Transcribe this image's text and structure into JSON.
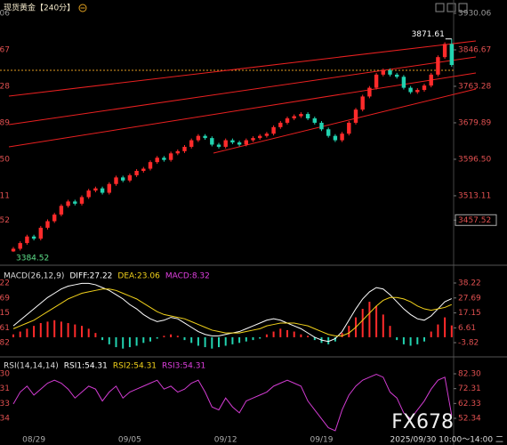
{
  "header": {
    "title": "现货黄金【240分】"
  },
  "watermark": "FX678",
  "chart_data": [
    {
      "type": "candlestick",
      "up_color": "#ff2b2b",
      "down_color": "#22d3b0",
      "ylim": [
        3358.4,
        3944.3
      ],
      "yticks": [
        3930.06,
        3846.67,
        3763.28,
        3679.89,
        {
          "value": 3596.5,
          "label": "3596.50"
        },
        3513.11,
        3457.52
      ],
      "annotations": [
        "3871.61",
        "3384.52"
      ],
      "footer": "2025/09/30 10:00～14:00 二",
      "categories": [
        null,
        null,
        null,
        "08/29",
        null,
        null,
        null,
        null,
        null,
        null,
        null,
        null,
        null,
        null,
        null,
        null,
        null,
        "09/05",
        null,
        null,
        null,
        null,
        null,
        null,
        null,
        null,
        null,
        null,
        null,
        null,
        null,
        "09/12",
        null,
        null,
        null,
        null,
        null,
        null,
        null,
        null,
        null,
        null,
        null,
        null,
        null,
        "09/19",
        null,
        null,
        null,
        null,
        null,
        null,
        null,
        null,
        null,
        null,
        null,
        null,
        null,
        null,
        null,
        null,
        null,
        null,
        null
      ],
      "candles": [
        [
          3386,
          3396,
          3384.52,
          3392
        ],
        [
          3392,
          3409,
          3388,
          3405
        ],
        [
          3405,
          3424,
          3401,
          3420
        ],
        [
          3420,
          3424,
          3411,
          3415
        ],
        [
          3415,
          3444,
          3411,
          3440
        ],
        [
          3440,
          3459,
          3436,
          3455
        ],
        [
          3455,
          3474,
          3451,
          3470
        ],
        [
          3470,
          3494,
          3466,
          3490
        ],
        [
          3490,
          3504,
          3486,
          3500
        ],
        [
          3500,
          3504,
          3491,
          3495
        ],
        [
          3495,
          3514,
          3491,
          3510
        ],
        [
          3510,
          3529,
          3506,
          3525
        ],
        [
          3525,
          3534,
          3521,
          3530
        ],
        [
          3530,
          3534,
          3516,
          3520
        ],
        [
          3520,
          3544,
          3516,
          3540
        ],
        [
          3540,
          3559,
          3536,
          3555
        ],
        [
          3555,
          3559,
          3544,
          3548
        ],
        [
          3548,
          3564,
          3544,
          3560
        ],
        [
          3560,
          3574,
          3556,
          3570
        ],
        [
          3570,
          3579,
          3566,
          3575
        ],
        [
          3575,
          3594,
          3571,
          3590
        ],
        [
          3590,
          3604,
          3586,
          3600
        ],
        [
          3600,
          3604,
          3591,
          3595
        ],
        [
          3595,
          3614,
          3591,
          3610
        ],
        [
          3610,
          3619,
          3606,
          3615
        ],
        [
          3615,
          3629,
          3611,
          3625
        ],
        [
          3625,
          3644,
          3621,
          3640
        ],
        [
          3640,
          3654,
          3636,
          3650
        ],
        [
          3650,
          3654,
          3641,
          3645
        ],
        [
          3645,
          3649,
          3626,
          3630
        ],
        [
          3630,
          3634,
          3621,
          3625
        ],
        [
          3625,
          3644,
          3621,
          3640
        ],
        [
          3640,
          3644,
          3631,
          3635
        ],
        [
          3635,
          3639,
          3626,
          3630
        ],
        [
          3630,
          3644,
          3626,
          3640
        ],
        [
          3640,
          3649,
          3636,
          3645
        ],
        [
          3645,
          3654,
          3641,
          3650
        ],
        [
          3650,
          3659,
          3646,
          3655
        ],
        [
          3655,
          3674,
          3651,
          3670
        ],
        [
          3670,
          3684,
          3666,
          3680
        ],
        [
          3680,
          3694,
          3676,
          3690
        ],
        [
          3690,
          3699,
          3686,
          3695
        ],
        [
          3695,
          3704,
          3691,
          3700
        ],
        [
          3700,
          3704,
          3686,
          3690
        ],
        [
          3690,
          3694,
          3676,
          3680
        ],
        [
          3680,
          3684,
          3661,
          3665
        ],
        [
          3665,
          3669,
          3646,
          3650
        ],
        [
          3650,
          3654,
          3636,
          3640
        ],
        [
          3640,
          3659,
          3636,
          3655
        ],
        [
          3655,
          3684,
          3651,
          3680
        ],
        [
          3680,
          3714,
          3676,
          3710
        ],
        [
          3710,
          3744,
          3706,
          3740
        ],
        [
          3740,
          3764,
          3736,
          3760
        ],
        [
          3760,
          3794,
          3756,
          3790
        ],
        [
          3790,
          3804,
          3786,
          3800
        ],
        [
          3800,
          3804,
          3786,
          3790
        ],
        [
          3790,
          3794,
          3781,
          3785
        ],
        [
          3785,
          3789,
          3756,
          3760
        ],
        [
          3760,
          3764,
          3746,
          3750
        ],
        [
          3750,
          3759,
          3746,
          3755
        ],
        [
          3755,
          3769,
          3751,
          3765
        ],
        [
          3765,
          3794,
          3761,
          3790
        ],
        [
          3790,
          3834,
          3786,
          3830
        ],
        [
          3830,
          3864,
          3826,
          3860
        ],
        [
          3860,
          3871.61,
          3808,
          3812
        ]
      ]
    },
    {
      "type": "macd",
      "legend": [
        {
          "text": "MACD(26,12,9)",
          "color": "#dddddd"
        },
        {
          "text": "DIFF:27.22",
          "color": "#ffffff"
        },
        {
          "text": "DEA:23.06",
          "color": "#f2d21b"
        },
        {
          "text": "MACD:8.32",
          "color": "#e040e0"
        }
      ],
      "ylim": [
        -13.23,
        47.63
      ],
      "yticks": [
        38.22,
        27.69,
        17.15,
        6.61,
        -3.82
      ],
      "up_color": "#ff2b2b",
      "down_color": "#22d3b0",
      "histogram": [
        2,
        4,
        6,
        8,
        10,
        11,
        12,
        11,
        10,
        9,
        8,
        6,
        3,
        -2,
        -5,
        -7,
        -8,
        -7,
        -6,
        -4,
        -3,
        -1,
        1,
        2,
        1,
        -2,
        -4,
        -6,
        -7,
        -8,
        -7,
        -6,
        -5,
        -4,
        -3,
        -2,
        -1,
        2,
        4,
        6,
        5,
        4,
        2,
        1,
        -2,
        -4,
        -5,
        -3,
        3,
        8,
        14,
        20,
        25,
        22,
        16,
        8,
        -2,
        -5,
        -6,
        -5,
        -3,
        4,
        9,
        14,
        8.32
      ],
      "series": [
        {
          "color": "#ffffff",
          "values": [
            8,
            12,
            16,
            20,
            24,
            28,
            31,
            34,
            36,
            37,
            38,
            38,
            37,
            35,
            33,
            30,
            27,
            23,
            20,
            16,
            13,
            11,
            12,
            14,
            13,
            10,
            7,
            4,
            2,
            1,
            1,
            2,
            3,
            4,
            6,
            8,
            10,
            12,
            13,
            12,
            10,
            8,
            6,
            3,
            0,
            -2,
            -3,
            -1,
            4,
            12,
            20,
            27,
            32,
            35,
            34,
            30,
            25,
            20,
            16,
            13,
            12,
            15,
            20,
            25,
            27.22
          ]
        },
        {
          "color": "#f2d21b",
          "values": [
            6,
            8,
            10,
            12,
            15,
            18,
            21,
            24,
            27,
            29,
            31,
            32,
            33,
            34,
            34,
            33,
            31,
            29,
            27,
            24,
            21,
            18,
            16,
            15,
            14,
            13,
            11,
            9,
            7,
            5,
            4,
            3,
            3,
            3,
            4,
            5,
            6,
            8,
            9,
            10,
            10,
            10,
            9,
            8,
            6,
            4,
            2,
            1,
            1,
            3,
            7,
            12,
            17,
            22,
            26,
            28,
            28,
            27,
            25,
            22,
            20,
            19,
            20,
            21,
            23.06
          ]
        }
      ]
    },
    {
      "type": "rsi",
      "legend": [
        {
          "text": "RSI(14,14,14)",
          "color": "#dddddd"
        },
        {
          "text": "RSI1:54.31",
          "color": "#ffffff"
        },
        {
          "text": "RSI2:54.31",
          "color": "#f2d21b"
        },
        {
          "text": "RSI3:54.31",
          "color": "#e040e0"
        }
      ],
      "ylim": [
        40.36,
        91.29
      ],
      "yticks": [
        {
          "value": 82.3,
          "label": "82.30"
        },
        72.31,
        62.33,
        52.34
      ],
      "series": [
        {
          "color": "#d23cd2",
          "values": [
            62,
            70,
            74,
            68,
            72,
            76,
            78,
            76,
            72,
            66,
            70,
            74,
            72,
            64,
            70,
            74,
            66,
            70,
            72,
            74,
            76,
            78,
            72,
            74,
            70,
            72,
            76,
            78,
            70,
            60,
            58,
            66,
            60,
            56,
            64,
            66,
            68,
            70,
            74,
            76,
            78,
            76,
            74,
            64,
            58,
            52,
            46,
            44,
            58,
            68,
            74,
            78,
            80,
            82,
            80,
            70,
            66,
            56,
            52,
            58,
            64,
            72,
            78,
            80,
            54.31
          ]
        }
      ]
    }
  ]
}
